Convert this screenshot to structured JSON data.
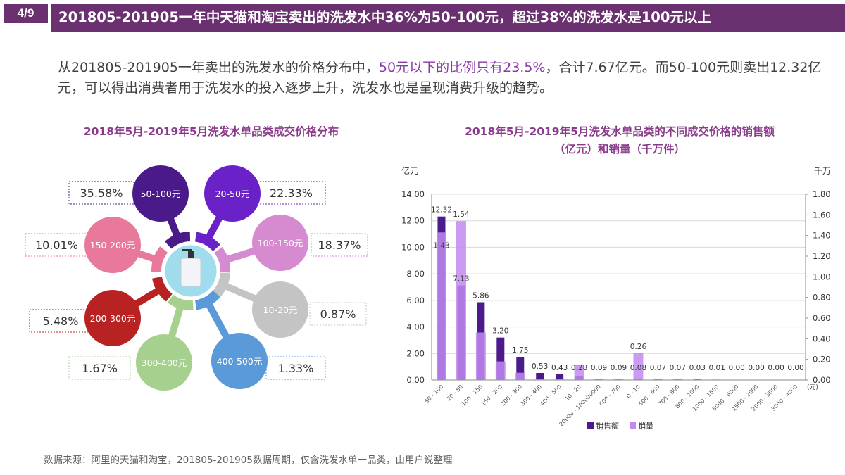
{
  "header": {
    "page_indicator": "4/9",
    "title": "201805-201905一年中天猫和淘宝卖出的洗发水中36%为50-100元，超过38%的洗发水是100元以上"
  },
  "paragraph": {
    "part1": "从201805-201905一年卖出的洗发水的价格分布中，",
    "part2": "50元以下的比例只有23.5%",
    "part3": "，合计7.67亿元。而50-100元则卖出12.32亿元，可以得出消费者用于洗发水的投入逐步上升，洗发水也是呈现消费升级的趋势。"
  },
  "colors": {
    "header": "#6a3070",
    "sales": "#4b1a8c",
    "volume": "#c28af0",
    "highlight": "#8a3aa8"
  },
  "infographic": {
    "title": "2018年5月-2019年5月洗发水单品类成交价格分布",
    "center_icon": "shampoo-bottle-icon",
    "segments": [
      {
        "label": "50-100元",
        "percent": "35.58%",
        "color": "#4a1a8a"
      },
      {
        "label": "20-50元",
        "percent": "22.33%",
        "color": "#6a22c8"
      },
      {
        "label": "150-200元",
        "percent": "10.01%",
        "color": "#e8799a"
      },
      {
        "label": "100-150元",
        "percent": "18.37%",
        "color": "#d68ad0"
      },
      {
        "label": "200-300元",
        "percent": "5.48%",
        "color": "#b82222"
      },
      {
        "label": "10-20元",
        "percent": "0.87%",
        "color": "#c4c4c4"
      },
      {
        "label": "300-400元",
        "percent": "1.67%",
        "color": "#a6d08e"
      },
      {
        "label": "400-500元",
        "percent": "1.33%",
        "color": "#5a9ad8"
      }
    ]
  },
  "chart_data": {
    "type": "bar",
    "title": "2018年5月-2019年5月洗发水单品类的不同成交价格的销售额（亿元）和销量（千万件）",
    "title_line1": "2018年5月-2019年5月洗发水单品类的不同成交价格的销售额",
    "title_line2": "（亿元）和销量（千万件）",
    "ylabel": "亿元",
    "y2label": "千万",
    "xunit": "(元)",
    "ylim": [
      0,
      14
    ],
    "y2lim": [
      0,
      1.8
    ],
    "yticks": [
      "0.00",
      "2.00",
      "4.00",
      "6.00",
      "8.00",
      "10.00",
      "12.00",
      "14.00"
    ],
    "y2ticks": [
      "0.00",
      "0.20",
      "0.40",
      "0.60",
      "0.80",
      "1.00",
      "1.20",
      "1.40",
      "1.60",
      "1.80"
    ],
    "grid": true,
    "legend_position": "bottom",
    "categories": [
      "50 - 100",
      "20 - 50",
      "100 - 150",
      "150 - 200",
      "200 - 300",
      "300 - 400",
      "400 - 500",
      "10 - 20",
      "20000 - 100000000",
      "600 - 700",
      "0 - 10",
      "500 - 600",
      "700 - 800",
      "800 - 1000",
      "1000 - 1500",
      "5000 - 6000",
      "1500 - 2000",
      "2000 - 3000",
      "3000 - 4000"
    ],
    "series": [
      {
        "name": "销售额",
        "axis": "left",
        "values": [
          12.32,
          7.13,
          5.86,
          3.2,
          1.75,
          0.53,
          0.43,
          0.28,
          0.09,
          0.09,
          0.08,
          0.07,
          0.07,
          0.03,
          0.01,
          0.0,
          0.0,
          0.0,
          0.0
        ],
        "labels": [
          "12.32",
          "7.13",
          "5.86",
          "3.20",
          "1.75",
          "0.53",
          "0.43",
          "0.28",
          "0.09",
          "0.09",
          "0.08",
          "0.07",
          "0.07",
          "0.03",
          "0.01",
          "0.00",
          "0.00",
          "0.00",
          "0.00"
        ]
      },
      {
        "name": "销量",
        "axis": "right",
        "values": [
          1.43,
          1.54,
          0.46,
          0.18,
          0.07,
          0.01,
          0.01,
          0.15,
          0.01,
          0.01,
          0.26,
          0.01,
          0.01,
          0.0,
          0.0,
          0.0,
          0.0,
          0.0,
          0.0
        ],
        "labels": [
          "1.43",
          "1.54",
          "",
          "",
          "",
          "",
          "",
          "",
          "",
          "",
          "0.26",
          "",
          "",
          "",
          "",
          "",
          "",
          "",
          ""
        ]
      }
    ]
  },
  "footer": {
    "source": "数据来源：阿里的天猫和淘宝，201805-201905数据周期，仅含洗发水单一品类，由用户说整理"
  }
}
